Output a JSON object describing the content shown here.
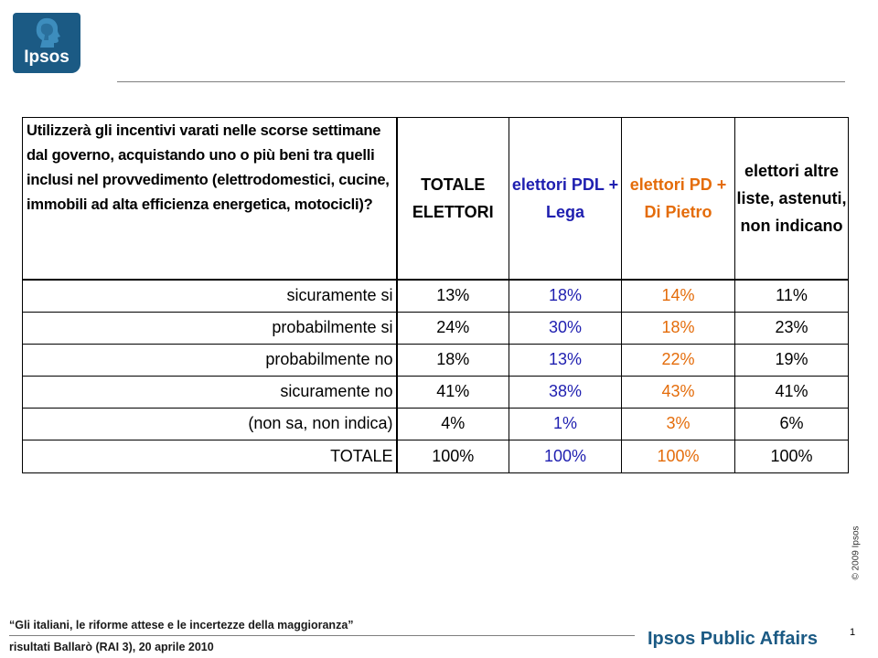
{
  "logo": {
    "text": "Ipsos",
    "color": "#1b5a84"
  },
  "table": {
    "question": "Utilizzerà gli incentivi varati nelle scorse settimane dal governo, acquistando uno o più beni tra quelli inclusi nel provvedimento (elettrodomestici, cucine, immobili ad alta efficienza energetica, motocicli)?",
    "columns": [
      {
        "label": "TOTALE ELETTORI",
        "color": "#000000"
      },
      {
        "label": "elettori PDL + Lega",
        "color": "#1f1fb0"
      },
      {
        "label": "elettori PD + Di Pietro",
        "color": "#e46c0a"
      },
      {
        "label": "elettori altre liste, astenuti, non indicano",
        "color": "#000000"
      }
    ],
    "rows": [
      {
        "label": "sicuramente si",
        "values": [
          "13%",
          "18%",
          "14%",
          "11%"
        ]
      },
      {
        "label": "probabilmente si",
        "values": [
          "24%",
          "30%",
          "18%",
          "23%"
        ]
      },
      {
        "label": "probabilmente no",
        "values": [
          "18%",
          "13%",
          "22%",
          "19%"
        ]
      },
      {
        "label": "sicuramente no",
        "values": [
          "41%",
          "38%",
          "43%",
          "41%"
        ]
      },
      {
        "label": "(non sa, non indica)",
        "values": [
          "4%",
          "1%",
          "3%",
          "6%"
        ]
      },
      {
        "label": "TOTALE",
        "values": [
          "100%",
          "100%",
          "100%",
          "100%"
        ]
      }
    ]
  },
  "footer": {
    "quote": "“Gli italiani, le riforme attese e le incertezze della maggioranza”",
    "subtitle": "risultati Ballarò (RAI 3), 20 aprile 2010",
    "brand": "Ipsos Public Affairs",
    "page": "1",
    "copyright": "© 2009 Ipsos"
  }
}
